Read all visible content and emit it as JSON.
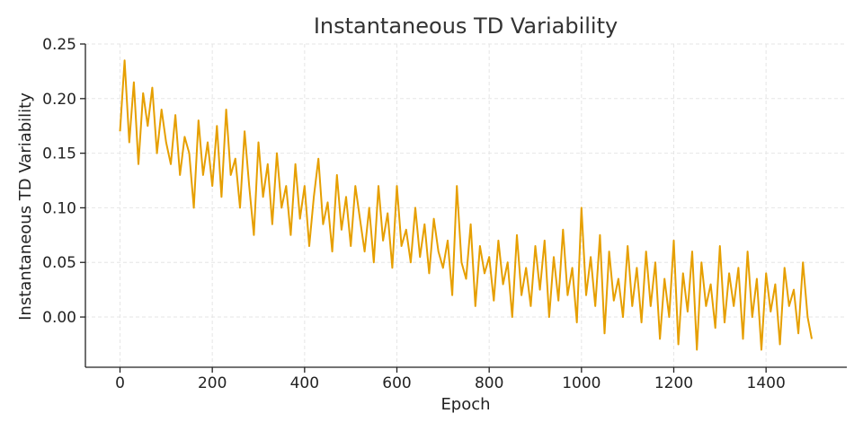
{
  "chart_data": {
    "type": "line",
    "title": "Instantaneous TD Variability",
    "xlabel": "Epoch",
    "ylabel": "Instantaneous TD Variability",
    "xlim": [
      -75,
      1575
    ],
    "ylim": [
      -0.046,
      0.25
    ],
    "x_ticks": [
      0,
      200,
      400,
      600,
      800,
      1000,
      1200,
      1400
    ],
    "x_tick_labels": [
      "0",
      "200",
      "400",
      "600",
      "800",
      "1000",
      "1200",
      "1400"
    ],
    "y_ticks": [
      0.0,
      0.05,
      0.1,
      0.15,
      0.2,
      0.25
    ],
    "y_tick_labels": [
      "0.00",
      "0.05",
      "0.10",
      "0.15",
      "0.20",
      "0.25"
    ],
    "grid": true,
    "line_color": "#E69F00",
    "series": [
      {
        "x": [
          0,
          10,
          20,
          30,
          40,
          50,
          60,
          70,
          80,
          90,
          100,
          110,
          120,
          130,
          140,
          150,
          160,
          170,
          180,
          190,
          200,
          210,
          220,
          230,
          240,
          250,
          260,
          270,
          280,
          290,
          300,
          310,
          320,
          330,
          340,
          350,
          360,
          370,
          380,
          390,
          400,
          410,
          420,
          430,
          440,
          450,
          460,
          470,
          480,
          490,
          500,
          510,
          520,
          530,
          540,
          550,
          560,
          570,
          580,
          590,
          600,
          610,
          620,
          630,
          640,
          650,
          660,
          670,
          680,
          690,
          700,
          710,
          720,
          730,
          740,
          750,
          760,
          770,
          780,
          790,
          800,
          810,
          820,
          830,
          840,
          850,
          860,
          870,
          880,
          890,
          900,
          910,
          920,
          930,
          940,
          950,
          960,
          970,
          980,
          990,
          1000,
          1010,
          1020,
          1030,
          1040,
          1050,
          1060,
          1070,
          1080,
          1090,
          1100,
          1110,
          1120,
          1130,
          1140,
          1150,
          1160,
          1170,
          1180,
          1190,
          1200,
          1210,
          1220,
          1230,
          1240,
          1250,
          1260,
          1270,
          1280,
          1290,
          1300,
          1310,
          1320,
          1330,
          1340,
          1350,
          1360,
          1370,
          1380,
          1390,
          1400,
          1410,
          1420,
          1430,
          1440,
          1450,
          1460,
          1470,
          1480,
          1490,
          1499
        ],
        "values": [
          0.17,
          0.235,
          0.16,
          0.215,
          0.14,
          0.205,
          0.175,
          0.21,
          0.15,
          0.19,
          0.16,
          0.14,
          0.185,
          0.13,
          0.165,
          0.15,
          0.1,
          0.18,
          0.13,
          0.16,
          0.12,
          0.175,
          0.11,
          0.19,
          0.13,
          0.145,
          0.1,
          0.17,
          0.12,
          0.075,
          0.16,
          0.11,
          0.14,
          0.085,
          0.15,
          0.1,
          0.12,
          0.075,
          0.14,
          0.09,
          0.12,
          0.065,
          0.11,
          0.145,
          0.085,
          0.105,
          0.06,
          0.13,
          0.08,
          0.11,
          0.065,
          0.12,
          0.09,
          0.06,
          0.1,
          0.05,
          0.12,
          0.07,
          0.095,
          0.045,
          0.12,
          0.065,
          0.08,
          0.05,
          0.1,
          0.055,
          0.085,
          0.04,
          0.09,
          0.06,
          0.045,
          0.07,
          0.02,
          0.12,
          0.05,
          0.035,
          0.085,
          0.01,
          0.065,
          0.04,
          0.055,
          0.015,
          0.07,
          0.03,
          0.05,
          0.0,
          0.075,
          0.02,
          0.045,
          0.01,
          0.065,
          0.025,
          0.07,
          0.0,
          0.055,
          0.015,
          0.08,
          0.02,
          0.045,
          -0.005,
          0.1,
          0.02,
          0.055,
          0.01,
          0.075,
          -0.015,
          0.06,
          0.015,
          0.035,
          0.0,
          0.065,
          0.01,
          0.045,
          -0.005,
          0.06,
          0.01,
          0.05,
          -0.02,
          0.035,
          0.0,
          0.07,
          -0.025,
          0.04,
          0.005,
          0.06,
          -0.03,
          0.05,
          0.01,
          0.03,
          -0.01,
          0.065,
          -0.005,
          0.04,
          0.01,
          0.045,
          -0.02,
          0.06,
          0.0,
          0.035,
          -0.03,
          0.04,
          0.005,
          0.03,
          -0.025,
          0.045,
          0.01,
          0.025,
          -0.015,
          0.05,
          0.0,
          -0.02
        ]
      }
    ]
  }
}
